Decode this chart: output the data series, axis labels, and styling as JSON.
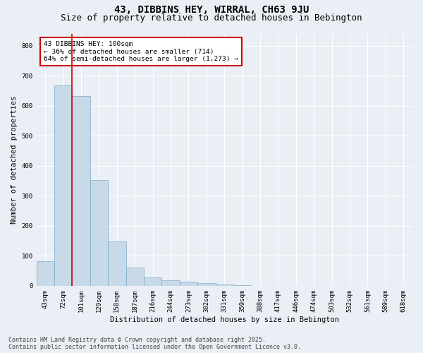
{
  "title1": "43, DIBBINS HEY, WIRRAL, CH63 9JU",
  "title2": "Size of property relative to detached houses in Bebington",
  "xlabel": "Distribution of detached houses by size in Bebington",
  "ylabel": "Number of detached properties",
  "categories": [
    "43sqm",
    "72sqm",
    "101sqm",
    "129sqm",
    "158sqm",
    "187sqm",
    "216sqm",
    "244sqm",
    "273sqm",
    "302sqm",
    "331sqm",
    "359sqm",
    "388sqm",
    "417sqm",
    "446sqm",
    "474sqm",
    "503sqm",
    "532sqm",
    "561sqm",
    "589sqm",
    "618sqm"
  ],
  "values": [
    83,
    668,
    632,
    352,
    148,
    60,
    27,
    18,
    14,
    9,
    4,
    2,
    0,
    0,
    0,
    0,
    0,
    0,
    0,
    0,
    0
  ],
  "bar_color": "#c8d9e8",
  "bar_edge_color": "#7aaac8",
  "vline_color": "#cc0000",
  "vline_pos": 1.5,
  "annotation_text": "43 DIBBINS HEY: 100sqm\n← 36% of detached houses are smaller (714)\n64% of semi-detached houses are larger (1,273) →",
  "annotation_box_color": "#ffffff",
  "annotation_box_edge_color": "#cc0000",
  "ylim": [
    0,
    840
  ],
  "yticks": [
    0,
    100,
    200,
    300,
    400,
    500,
    600,
    700,
    800
  ],
  "background_color": "#eaeff5",
  "grid_color": "#ffffff",
  "footer1": "Contains HM Land Registry data © Crown copyright and database right 2025.",
  "footer2": "Contains public sector information licensed under the Open Government Licence v3.0.",
  "title_fontsize": 10,
  "subtitle_fontsize": 9,
  "axis_label_fontsize": 7.5,
  "tick_fontsize": 6.5,
  "annotation_fontsize": 6.8,
  "footer_fontsize": 6.0
}
